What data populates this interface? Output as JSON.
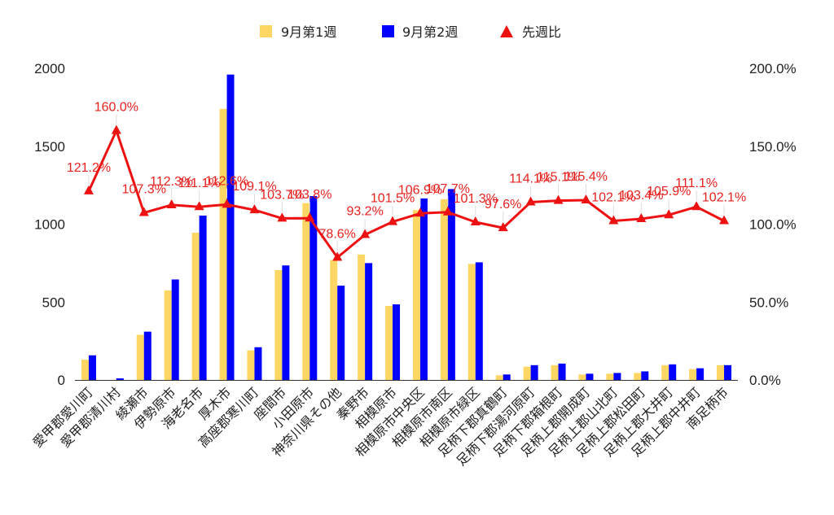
{
  "chart_data": {
    "type": "bar",
    "categories": [
      "愛甲郡愛川町",
      "愛甲郡清川村",
      "綾瀬市",
      "伊勢原市",
      "海老名市",
      "厚木市",
      "高座郡寒川町",
      "座間市",
      "小田原市",
      "神奈川県その他",
      "秦野市",
      "相模原市",
      "相模原市中央区",
      "相模原市南区",
      "相模原市緑区",
      "足柄下郡真鶴町",
      "足柄下郡湯河原町",
      "足柄下郡箱根町",
      "足柄上郡開成町",
      "足柄上郡山北町",
      "足柄上郡松田町",
      "足柄上郡大井町",
      "足柄上郡中井町",
      "南足柄市"
    ],
    "series": [
      {
        "name": "9月第1週",
        "kind": "bar",
        "axis": "left",
        "color": "#fdd663",
        "values": [
          130,
          0,
          290,
          575,
          945,
          1740,
          190,
          705,
          1135,
          770,
          805,
          475,
          1090,
          1160,
          745,
          30,
          85,
          95,
          35,
          40,
          45,
          95,
          70,
          95
        ]
      },
      {
        "name": "9月第2週",
        "kind": "bar",
        "axis": "left",
        "color": "#0000ff",
        "values": [
          158,
          10,
          310,
          645,
          1055,
          1960,
          210,
          735,
          1180,
          605,
          750,
          485,
          1165,
          1225,
          755,
          35,
          95,
          105,
          40,
          45,
          55,
          100,
          75,
          95
        ]
      },
      {
        "name": "先週比",
        "kind": "line",
        "axis": "right",
        "color": "#ee1111",
        "marker": "triangle",
        "values": [
          121.2,
          160.0,
          107.3,
          112.3,
          111.1,
          112.6,
          109.1,
          103.7,
          103.8,
          78.6,
          93.2,
          101.5,
          106.9,
          107.7,
          101.3,
          97.6,
          114.1,
          115.1,
          115.4,
          102.1,
          103.4,
          105.9,
          111.1,
          102.1
        ],
        "labels": [
          "121.2%",
          "160.0%",
          "107.3%",
          "112.3%",
          "111.1%",
          "112.6%",
          "109.1%",
          "103.7%",
          "103.8%",
          "78.6%",
          "93.2%",
          "101.5%",
          "106.9%",
          "107.7%",
          "101.3%",
          "97.6%",
          "114.1%",
          "115.1%",
          "115.4%",
          "102.1%",
          "103.4%",
          "105.9%",
          "111.1%",
          "102.1%"
        ]
      }
    ],
    "y_left": {
      "min": 0,
      "max": 2000,
      "ticks": [
        "0",
        "500",
        "1000",
        "1500",
        "2000"
      ]
    },
    "y_right": {
      "min": 0,
      "max": 200,
      "ticks": [
        "0.0%",
        "50.0%",
        "100.0%",
        "150.0%",
        "200.0%"
      ]
    },
    "legend": {
      "position": "top",
      "items": [
        "9月第1週",
        "9月第2週",
        "先週比"
      ]
    },
    "grid": false
  }
}
